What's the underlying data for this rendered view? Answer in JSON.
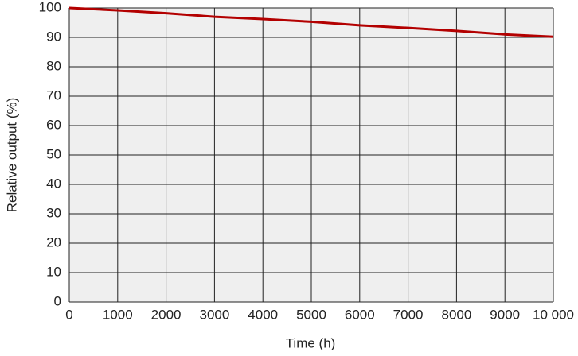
{
  "chart_data": {
    "type": "line",
    "x_label": "Time (h)",
    "y_label": "Relative output (%)",
    "x": [
      0,
      1000,
      2000,
      3000,
      4000,
      5000,
      6000,
      7000,
      8000,
      9000,
      10000
    ],
    "series": [
      {
        "name": "Relative output",
        "color": "#b30000",
        "values": [
          100,
          99.2,
          98.2,
          97,
          96.2,
          95.3,
          94.1,
          93.2,
          92.2,
          91,
          90.2
        ]
      }
    ],
    "xlim": [
      0,
      10000
    ],
    "xticks": [
      0,
      1000,
      2000,
      3000,
      4000,
      5000,
      6000,
      7000,
      8000,
      9000,
      {
        "value": 10000,
        "label": "10 000"
      }
    ],
    "ylim": [
      0,
      100
    ],
    "yticks": [
      0,
      10,
      20,
      30,
      40,
      50,
      60,
      70,
      80,
      90,
      100
    ],
    "grid": true
  }
}
